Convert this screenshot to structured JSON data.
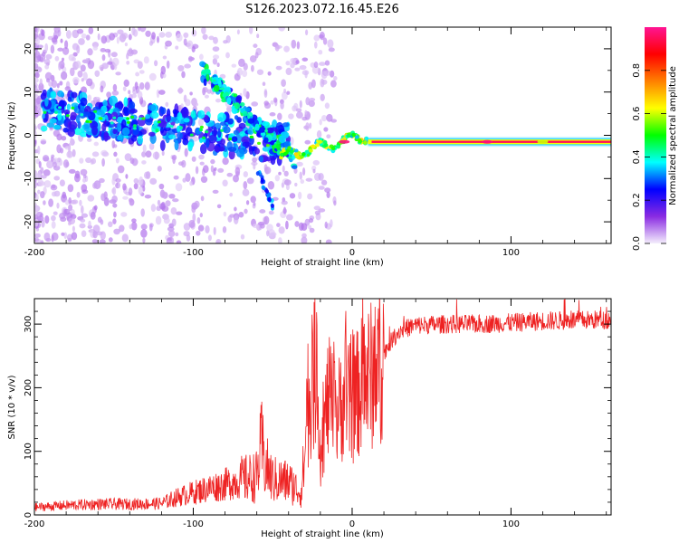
{
  "title": "S126.2023.072.16.45.E26",
  "chart_data": [
    {
      "type": "heatmap",
      "xlabel": "Height of straight line (km)",
      "ylabel": "Frequency (Hz)",
      "xlim": [
        -200,
        163
      ],
      "ylim": [
        -25,
        25
      ],
      "xticks": [
        -200,
        -100,
        0,
        100
      ],
      "yticks": [
        -20,
        -10,
        0,
        10,
        20
      ],
      "colorbar": {
        "label": "Normalized spectral amplitude",
        "range": [
          0,
          1
        ],
        "ticks": [
          "0.0",
          "0.2",
          "0.4",
          "0.6",
          "0.8"
        ],
        "colormap": [
          "#f4eefc",
          "#8a2be2",
          "#0000ff",
          "#00ffff",
          "#00ff00",
          "#ffff00",
          "#ff8000",
          "#ff0000",
          "#ff1493"
        ]
      },
      "features": [
        {
          "name": "diffuse_band",
          "x": [
            -195,
            -40
          ],
          "freq_start": 6,
          "freq_end": -2,
          "amplitude": 0.3
        },
        {
          "name": "descending_branch",
          "x": [
            -95,
            -35
          ],
          "freq_start": 15,
          "freq_end": -6,
          "amplitude": 0.35
        },
        {
          "name": "lower_tail",
          "x": [
            -60,
            -50
          ],
          "freq_start": -8,
          "freq_end": -16,
          "amplitude": 0.3
        },
        {
          "name": "converging_signal",
          "x": [
            -45,
            10
          ],
          "freq_start": -5,
          "freq_end": 0,
          "amplitude": 0.6
        },
        {
          "name": "carrier_line",
          "x": [
            10,
            163
          ],
          "freq": -1.5,
          "amplitude": 0.95
        }
      ]
    },
    {
      "type": "line",
      "xlabel": "Height of straight line (km)",
      "ylabel": "SNR (10 * v/v)",
      "xlim": [
        -200,
        163
      ],
      "ylim": [
        0,
        340
      ],
      "xticks": [
        -200,
        -100,
        0,
        100
      ],
      "yticks": [
        0,
        100,
        200,
        300
      ],
      "color": "#ee2222",
      "series": [
        {
          "x": [
            -200,
            -180,
            -160,
            -140,
            -120,
            -110,
            -100,
            -90,
            -80,
            -70,
            -60,
            -57,
            -55,
            -50,
            -40,
            -32,
            -28,
            -25,
            -22,
            -20,
            -15,
            -10,
            -5,
            0,
            5,
            10,
            15,
            20,
            25,
            30,
            40,
            60,
            80,
            100,
            120,
            140,
            163
          ],
          "y": [
            12,
            15,
            17,
            17,
            18,
            28,
            35,
            42,
            48,
            55,
            60,
            110,
            80,
            55,
            52,
            35,
            150,
            210,
            240,
            95,
            185,
            150,
            190,
            170,
            200,
            215,
            225,
            255,
            275,
            290,
            298,
            300,
            300,
            302,
            305,
            306,
            307
          ]
        }
      ]
    }
  ]
}
